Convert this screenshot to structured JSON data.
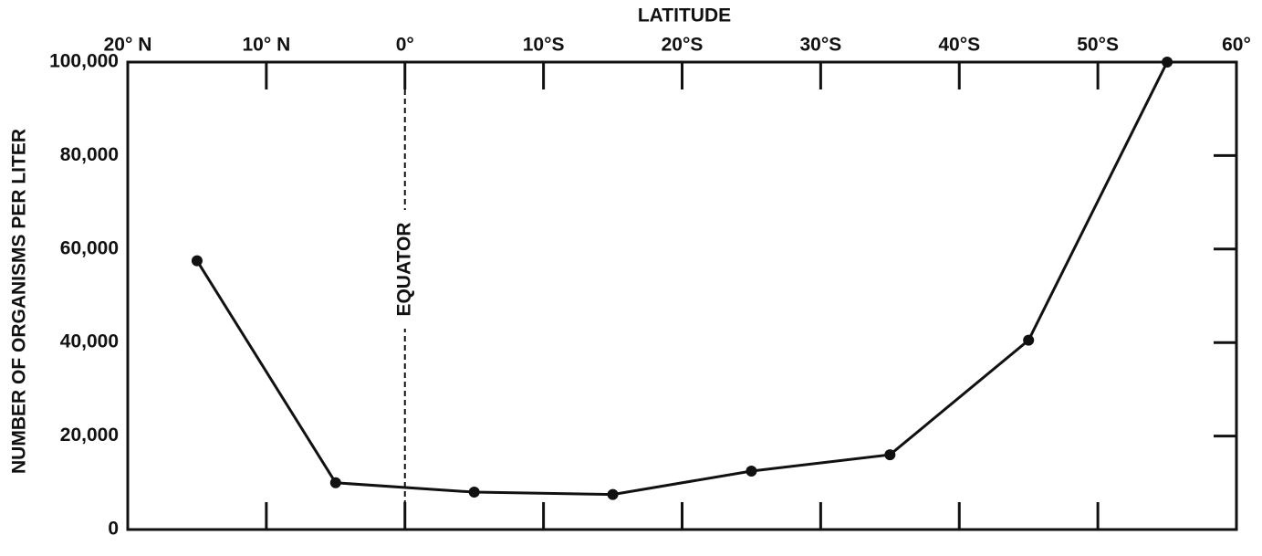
{
  "chart_data": {
    "type": "line",
    "title": "LATITUDE",
    "y_label": "NUMBER OF ORGANISMS PER LITER",
    "equator_label": "EQUATOR",
    "equator_x": 0,
    "x": [
      -15,
      -5,
      5,
      15,
      25,
      35,
      45,
      55
    ],
    "series": [
      {
        "name": "Organisms",
        "color": "#111111",
        "values": [
          57500,
          10000,
          8000,
          7500,
          12500,
          16000,
          40500,
          100000
        ]
      }
    ],
    "xlim": [
      -20,
      60
    ],
    "xticks": [
      {
        "value": -20,
        "label": "20° N"
      },
      {
        "value": -10,
        "label": "10° N"
      },
      {
        "value": 0,
        "label": "0°"
      },
      {
        "value": 10,
        "label": "10°S"
      },
      {
        "value": 20,
        "label": "20°S"
      },
      {
        "value": 30,
        "label": "30°S"
      },
      {
        "value": 40,
        "label": "40°S"
      },
      {
        "value": 50,
        "label": "50°S"
      },
      {
        "value": 60,
        "label": "60°"
      }
    ],
    "ylim": [
      0,
      100000
    ],
    "yticks": [
      0,
      {
        "value": 20000,
        "label": "20,000"
      },
      {
        "value": 40000,
        "label": "40,000"
      },
      {
        "value": 60000,
        "label": "60,000"
      },
      {
        "value": 80000,
        "label": "80,000"
      },
      {
        "value": 100000,
        "label": "100,000"
      }
    ],
    "grid": false
  }
}
